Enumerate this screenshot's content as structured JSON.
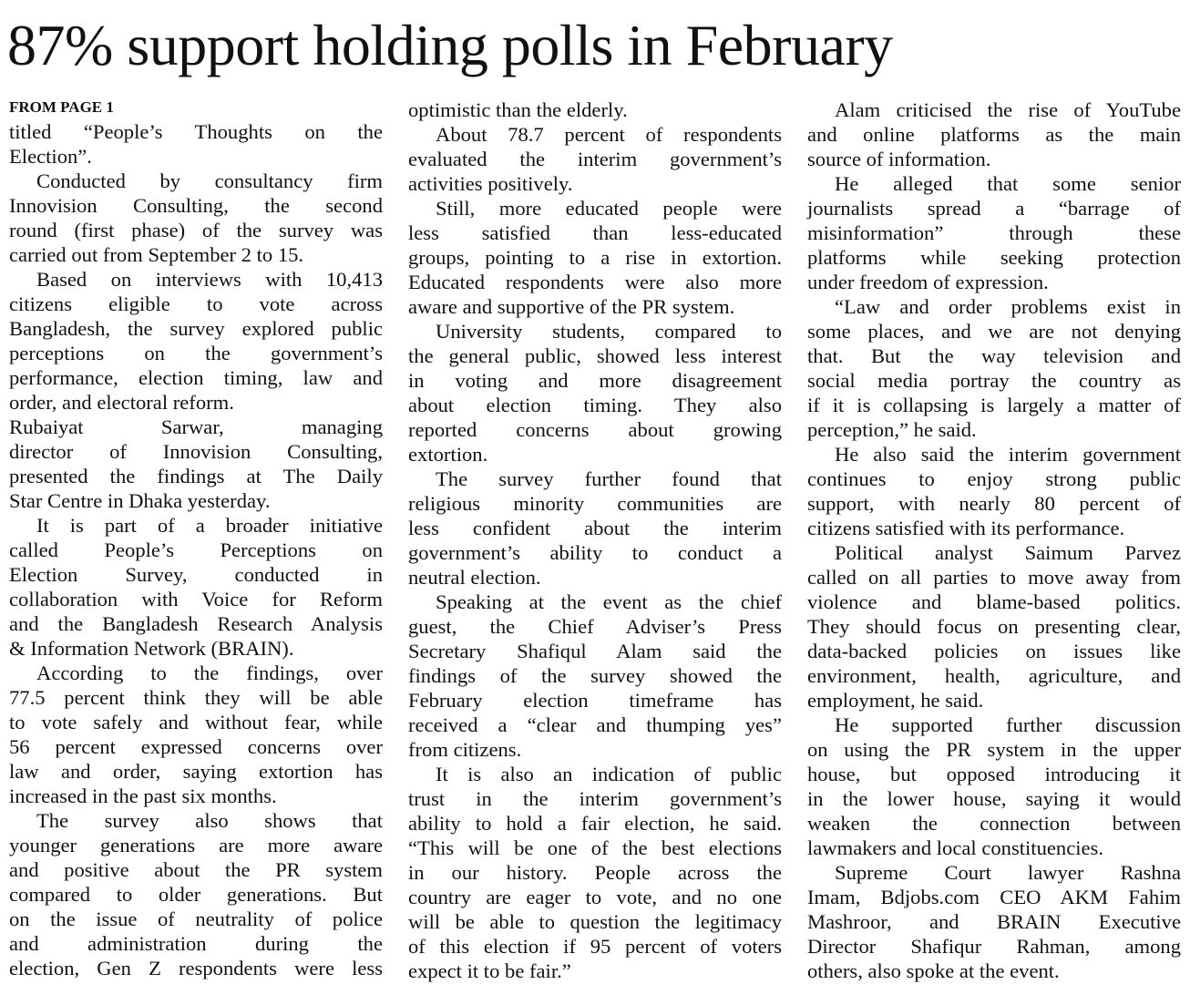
{
  "headline": "87% support holding polls in February",
  "kicker": "FROM PAGE 1",
  "columns": [
    {
      "paragraphs": [
        {
          "indent": false,
          "lines": [
            "titled “People’s Thoughts on the",
            "Election”."
          ]
        },
        {
          "indent": true,
          "lines": [
            "Conducted by consultancy firm",
            "Innovision Consulting, the second",
            "round (first phase) of the survey was",
            "carried out from September 2 to 15."
          ]
        },
        {
          "indent": true,
          "lines": [
            "Based on interviews with 10,413",
            "citizens eligible to vote across",
            "Bangladesh, the survey explored public",
            "perceptions on the government’s",
            "performance, election timing, law and",
            "order, and electoral reform."
          ]
        },
        {
          "indent": false,
          "lines": [
            "Rubaiyat Sarwar, managing",
            "director of Innovision Consulting,",
            "presented the findings at The Daily",
            "Star Centre in Dhaka yesterday."
          ]
        },
        {
          "indent": true,
          "lines": [
            "It is part of a broader initiative",
            "called People’s Perceptions on",
            "Election Survey, conducted in",
            "collaboration with Voice for Reform",
            "and the Bangladesh Research Analysis",
            "& Information Network (BRAIN)."
          ]
        },
        {
          "indent": true,
          "lines": [
            "According to the findings, over",
            "77.5 percent think they will be able",
            "to vote safely and without fear, while",
            "56 percent expressed concerns over",
            "law and order, saying extortion has",
            "increased in the past six months."
          ]
        },
        {
          "indent": true,
          "cont": true,
          "lines": [
            "The survey also shows that",
            "younger generations are more aware",
            "and positive about the PR system",
            "compared to older generations. But",
            "on the issue of neutrality of police",
            "and administration during the",
            "election, Gen Z respondents were less"
          ]
        }
      ]
    },
    {
      "paragraphs": [
        {
          "indent": false,
          "lines": [
            "optimistic than the elderly."
          ]
        },
        {
          "indent": true,
          "lines": [
            "About 78.7 percent of respondents",
            "evaluated the interim government’s",
            "activities positively."
          ]
        },
        {
          "indent": true,
          "lines": [
            "Still, more educated people were",
            "less satisfied than less-educated",
            "groups, pointing to a rise in extortion.",
            "Educated respondents were also more",
            "aware and supportive of the PR system."
          ]
        },
        {
          "indent": true,
          "lines": [
            "University students, compared to",
            "the general public, showed less interest",
            "in voting and more disagreement",
            "about election timing. They also",
            "reported concerns about growing",
            "extortion."
          ]
        },
        {
          "indent": true,
          "lines": [
            "The survey further found that",
            "religious minority communities are",
            "less confident about the interim",
            "government’s ability to conduct a",
            "neutral election."
          ]
        },
        {
          "indent": true,
          "lines": [
            "Speaking at the event as the chief",
            "guest, the Chief Adviser’s Press",
            "Secretary Shafiqul Alam said the",
            "findings of the survey showed the",
            "February election timeframe has",
            "received a “clear and thumping yes”",
            "from citizens."
          ]
        },
        {
          "indent": true,
          "lines": [
            "It is also an indication of public",
            "trust in the interim government’s",
            "ability to hold a fair election, he said.",
            "“This will be one of the best elections",
            "in our history. People across the",
            "country are eager to vote, and no one",
            "will be able to question the legitimacy",
            "of this election if 95 percent of voters",
            "expect it to be fair.”"
          ]
        }
      ]
    },
    {
      "paragraphs": [
        {
          "indent": true,
          "lines": [
            "Alam criticised the rise of YouTube",
            "and online platforms as the main",
            "source of information."
          ]
        },
        {
          "indent": true,
          "lines": [
            "He alleged that some senior",
            "journalists spread a “barrage of",
            "misinformation” through these",
            "platforms while seeking protection",
            "under freedom of expression."
          ]
        },
        {
          "indent": true,
          "lines": [
            "“Law and order problems exist in",
            "some places, and we are not denying",
            "that. But the way television and",
            "social media portray the country as",
            "if it is collapsing is largely a matter of",
            "perception,” he said."
          ]
        },
        {
          "indent": true,
          "lines": [
            "He also said the interim government",
            "continues to enjoy strong public",
            "support, with nearly 80 percent of",
            "citizens satisfied with its performance."
          ]
        },
        {
          "indent": true,
          "lines": [
            "Political analyst Saimum Parvez",
            "called on all parties to move away from",
            "violence and blame-based politics.",
            "They should focus on presenting clear,",
            "data-backed policies on issues like",
            "environment, health, agriculture, and",
            "employment, he said."
          ]
        },
        {
          "indent": true,
          "lines": [
            "He supported further discussion",
            "on using the PR system in the upper",
            "house, but opposed introducing it",
            "in the lower house, saying it would",
            "weaken the connection between",
            "lawmakers and local constituencies."
          ]
        },
        {
          "indent": true,
          "lines": [
            "Supreme Court lawyer Rashna",
            "Imam, Bdjobs.com CEO AKM Fahim",
            "Mashroor, and BRAIN Executive",
            "Director Shafiqur Rahman, among",
            "others, also spoke at the event."
          ]
        }
      ]
    }
  ]
}
